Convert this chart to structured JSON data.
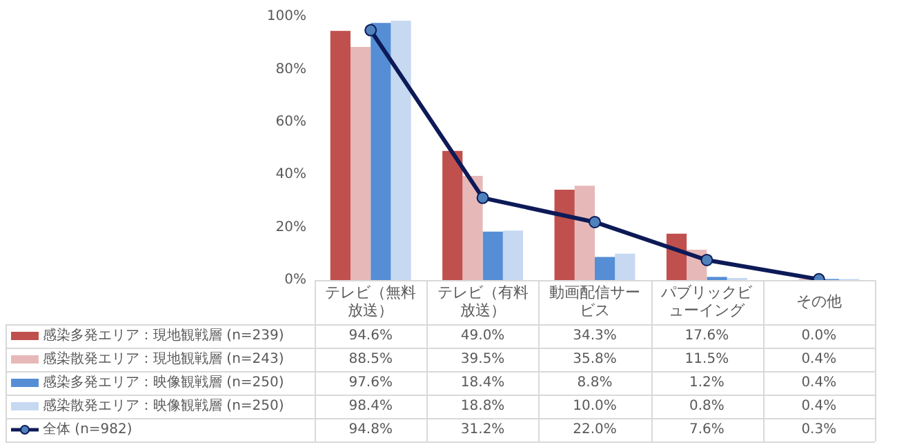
{
  "chart_data": {
    "type": "bar",
    "categories": [
      "テレビ（無料放送）",
      "テレビ（有料放送）",
      "動画配信サービス",
      "パブリックビューイング",
      "その他"
    ],
    "ylim": [
      0,
      100
    ],
    "yticks": [
      {
        "value": 0,
        "label": "0%"
      },
      {
        "value": 20,
        "label": "20%"
      },
      {
        "value": 40,
        "label": "40%"
      },
      {
        "value": 60,
        "label": "60%"
      },
      {
        "value": 80,
        "label": "80%"
      },
      {
        "value": 100,
        "label": "100%"
      }
    ],
    "grid": false,
    "legend": "bottom",
    "marker": "circle",
    "series": [
      {
        "name": "感染多発エリア：現地観戦層 (n=239)",
        "color": "#c0504d",
        "values": [
          94.6,
          49.0,
          34.3,
          17.6,
          0.0
        ],
        "value_labels": [
          "94.6%",
          "49.0%",
          "34.3%",
          "17.6%",
          "0.0%"
        ]
      },
      {
        "name": "感染散発エリア：現地観戦層 (n=243)",
        "color": "#e6b9b8",
        "values": [
          88.5,
          39.5,
          35.8,
          11.5,
          0.4
        ],
        "value_labels": [
          "88.5%",
          "39.5%",
          "35.8%",
          "11.5%",
          "0.4%"
        ]
      },
      {
        "name": "感染多発エリア：映像観戦層 (n=250)",
        "color": "#558ed5",
        "values": [
          97.6,
          18.4,
          8.8,
          1.2,
          0.4
        ],
        "value_labels": [
          "97.6%",
          "18.4%",
          "8.8%",
          "1.2%",
          "0.4%"
        ]
      },
      {
        "name": "感染散発エリア：映像観戦層 (n=250)",
        "color": "#c6d9f1",
        "values": [
          98.4,
          18.8,
          10.0,
          0.8,
          0.4
        ],
        "value_labels": [
          "98.4%",
          "18.8%",
          "10.0%",
          "0.8%",
          "0.4%"
        ]
      },
      {
        "name": "全体 (n=982)",
        "type": "line",
        "color": "#0d1a57",
        "values": [
          94.8,
          31.2,
          22.0,
          7.6,
          0.3
        ],
        "value_labels": [
          "94.8%",
          "31.2%",
          "22.0%",
          "7.6%",
          "0.3%"
        ]
      }
    ]
  }
}
